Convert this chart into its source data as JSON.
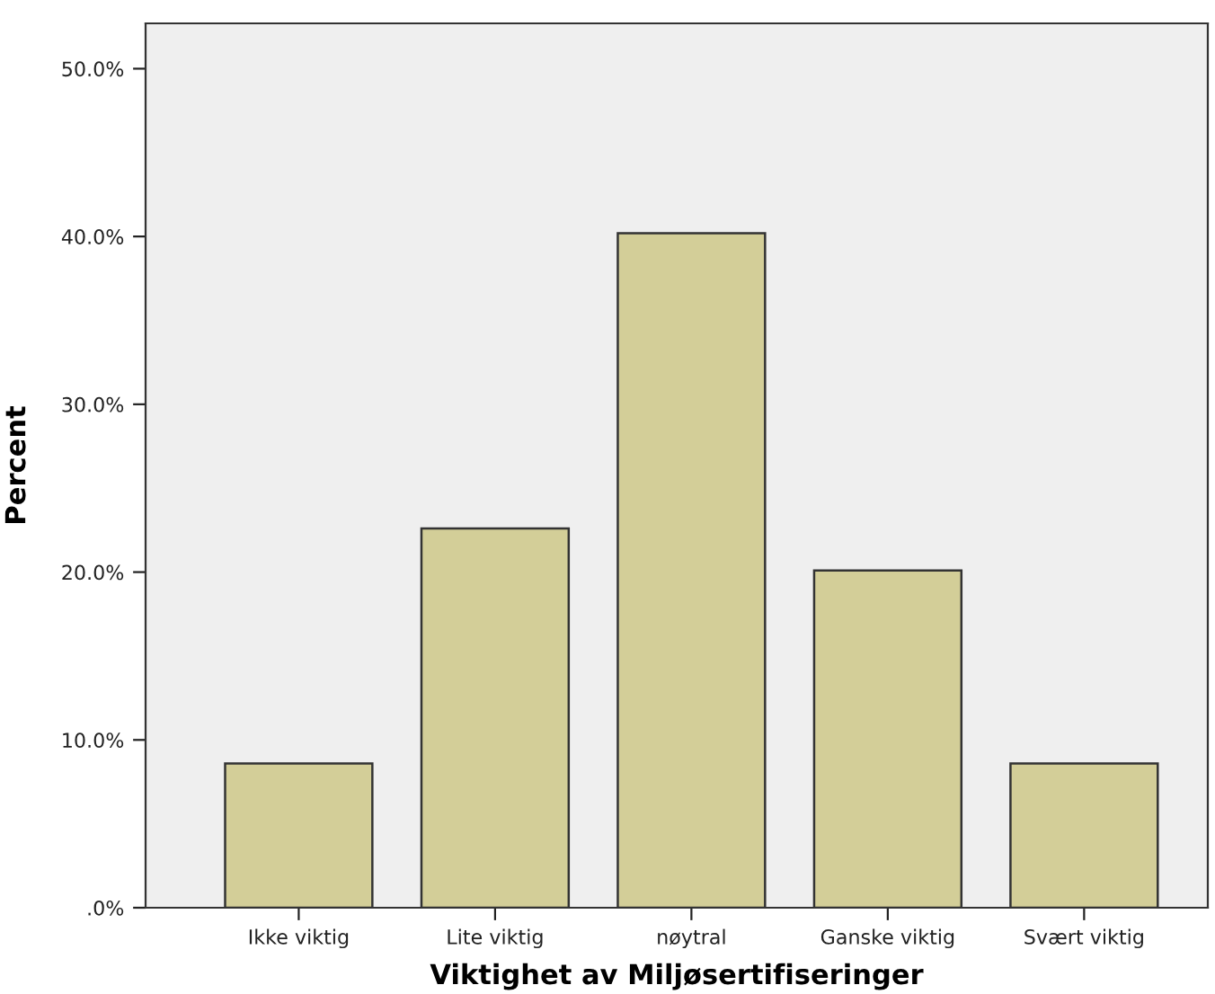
{
  "chart_data": {
    "type": "bar",
    "xlabel": "Viktighet av Miljøsertifiseringer",
    "ylabel": "Percent",
    "categories": [
      "Ikke viktig",
      "Lite viktig",
      "nøytral",
      "Ganske viktig",
      "Svært viktig"
    ],
    "values": [
      8.6,
      22.6,
      40.2,
      20.1,
      8.6
    ],
    "color": "#d3ce98",
    "ylim": [
      0,
      52.7
    ],
    "yticks": [
      {
        "value": 0,
        "label": ".0%"
      },
      {
        "value": 10,
        "label": "10.0%"
      },
      {
        "value": 20,
        "label": "20.0%"
      },
      {
        "value": 30,
        "label": "30.0%"
      },
      {
        "value": 40,
        "label": "40.0%"
      },
      {
        "value": 50,
        "label": "50.0%"
      }
    ],
    "grid": false
  }
}
